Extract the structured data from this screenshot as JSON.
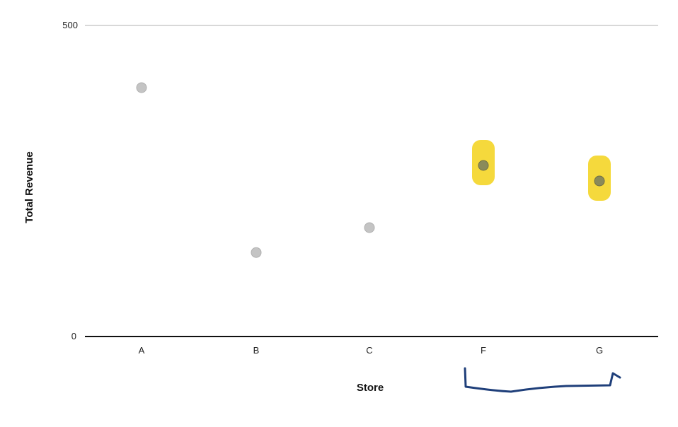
{
  "chart_data": {
    "type": "scatter",
    "title": "",
    "xlabel": "Store",
    "ylabel": "Total Revenue",
    "categories": [
      "A",
      "B",
      "C",
      "F",
      "G"
    ],
    "values": [
      400,
      135,
      175,
      275,
      250
    ],
    "ylim": [
      0,
      500
    ],
    "y_ticks": [
      0,
      500
    ],
    "grid": "top reference line only",
    "highlighted_categories": [
      "F",
      "G"
    ],
    "colors": {
      "point": "#c4c4c4",
      "point_highlighted": "#8a8a5a",
      "highlight": "#f3d21a",
      "bracket": "#1f3f7a",
      "axis": "#111111",
      "gridline": "#d8d8d8"
    }
  }
}
